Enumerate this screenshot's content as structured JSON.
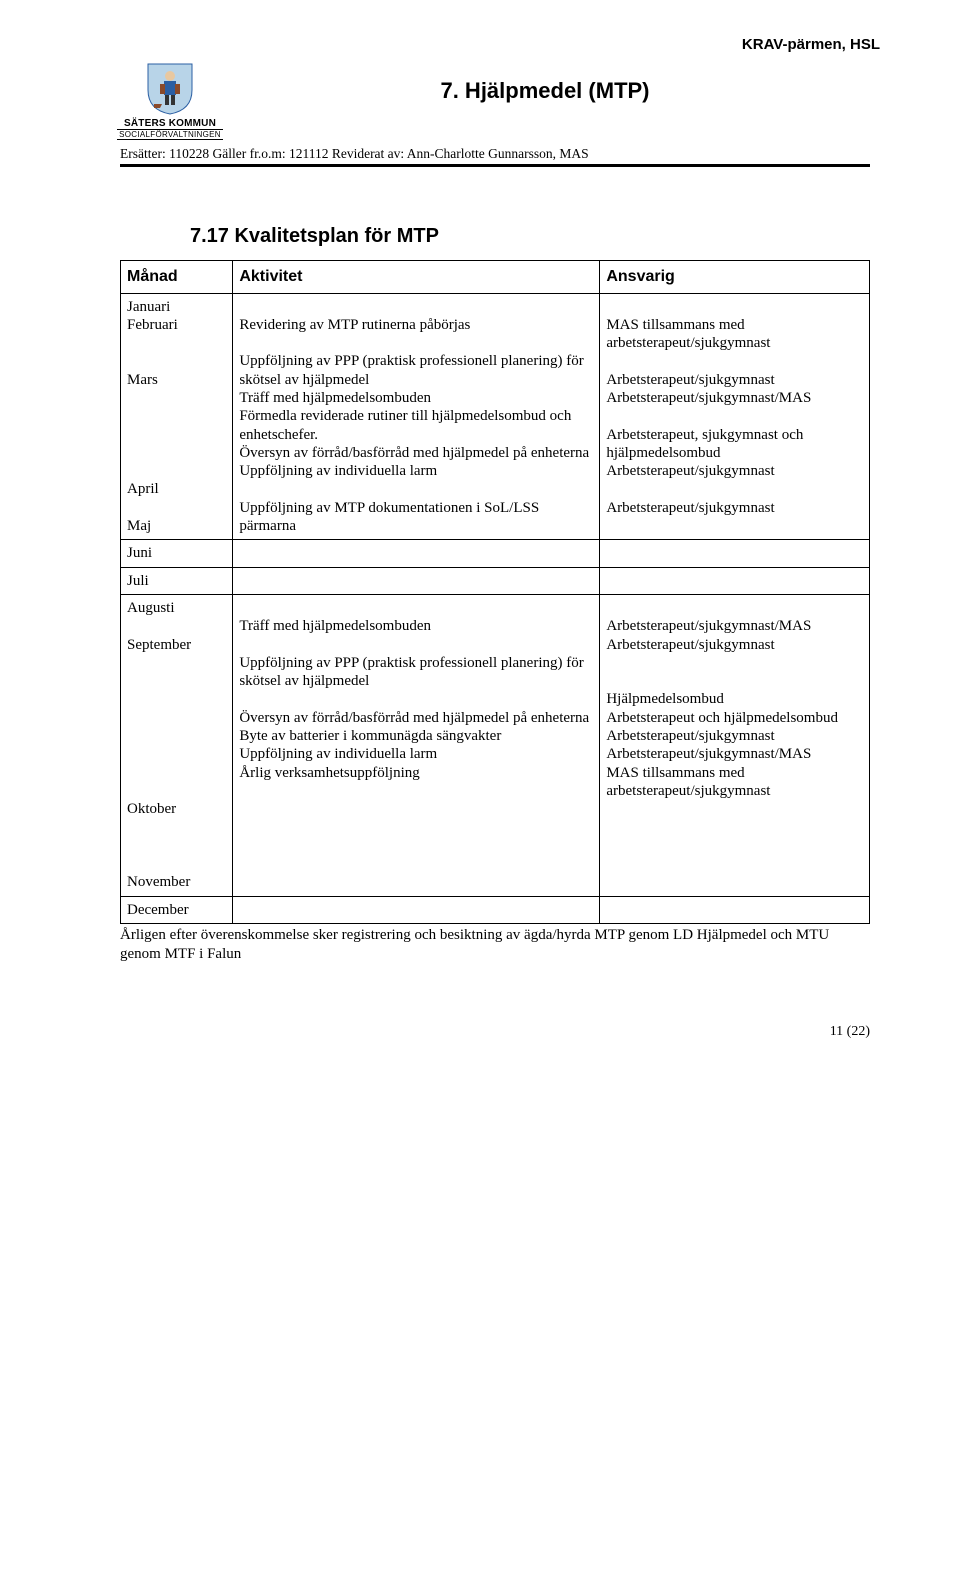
{
  "header": {
    "topRight": "KRAV-pärmen, HSL",
    "title": "7. Hjälpmedel (MTP)",
    "orgName": "SÄTERS KOMMUN",
    "orgSub": "SOCIALFÖRVALTNINGEN",
    "metaLine": "Ersätter: 110228   Gäller fr.o.m: 121112   Reviderat av: Ann-Charlotte Gunnarsson, MAS"
  },
  "section": {
    "title": "7.17 Kvalitetsplan för MTP"
  },
  "table": {
    "headers": {
      "c1": "Månad",
      "c2": "Aktivitet",
      "c3": "Ansvarig"
    },
    "rows": [
      {
        "c1": "Januari\nFebruari\n\n\nMars\n\n\n\n\n\nApril\n\nMaj",
        "c2": "\nRevidering av MTP rutinerna påbörjas\n\nUppföljning av PPP (praktisk professionell planering) för skötsel av hjälpmedel\nTräff med hjälpmedelsombuden\nFörmedla reviderade rutiner till hjälpmedelsombud och enhetschefer.\nÖversyn av förråd/basförråd med hjälpmedel på enheterna\nUppföljning av individuella larm\n\nUppföljning av MTP dokumentationen i SoL/LSS pärmarna",
        "c3": "\nMAS tillsammans med arbetsterapeut/sjukgymnast\n\nArbetsterapeut/sjukgymnast\nArbetsterapeut/sjukgymnast/MAS\n\nArbetsterapeut, sjukgymnast och hjälpmedelsombud\nArbetsterapeut/sjukgymnast\n\nArbetsterapeut/sjukgymnast"
      },
      {
        "c1": "Juni",
        "c2": "",
        "c3": ""
      },
      {
        "c1": "Juli",
        "c2": "",
        "c3": ""
      },
      {
        "c1": "Augusti\n\nSeptember\n\n\n\n\n\n\n\n\nOktober\n\n\n\nNovember",
        "c2": "\nTräff med hjälpmedelsombuden\n\nUppföljning av PPP (praktisk professionell planering) för skötsel av hjälpmedel\n\nÖversyn av förråd/basförråd med hjälpmedel på enheterna\nByte av batterier i kommunägda sängvakter\nUppföljning av individuella larm\nÅrlig verksamhetsuppföljning",
        "c3": "\nArbetsterapeut/sjukgymnast/MAS\nArbetsterapeut/sjukgymnast\n\n\nHjälpmedelsombud\nArbetsterapeut och hjälpmedelsombud\nArbetsterapeut/sjukgymnast\nArbetsterapeut/sjukgymnast/MAS\nMAS tillsammans med arbetsterapeut/sjukgymnast"
      },
      {
        "c1": "December",
        "c2": "",
        "c3": ""
      }
    ]
  },
  "footer": {
    "note": "Årligen efter överenskommelse sker registrering och besiktning av ägda/hyrda MTP genom LD Hjälpmedel och MTU genom MTF i Falun",
    "page": "11 (22)"
  },
  "colors": {
    "border": "#000000",
    "background": "#ffffff",
    "logoShield": "#b8d4e8",
    "logoAccent": "#2b5fa3",
    "logoFigure": "#8a4a2a"
  }
}
